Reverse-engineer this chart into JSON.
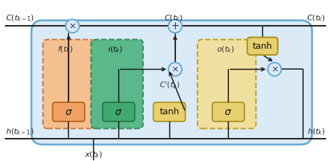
{
  "fig_width": 4.74,
  "fig_height": 2.31,
  "dpi": 100,
  "bg_outer": "#ffffff",
  "bg_inner": "#daeaf7",
  "cell_border_color": "#6aaad4",
  "gate_f_fill": "#f5c090",
  "gate_f_border": "#d07840",
  "gate_i_fill": "#5ab88a",
  "gate_i_border": "#3a8860",
  "gate_o_fill": "#f0e0a0",
  "gate_o_border": "#c8a020",
  "sigma_f_fill": "#f0a060",
  "sigma_f_border": "#b06020",
  "sigma_i_fill": "#40a870",
  "sigma_i_border": "#207840",
  "sigma_o_fill": "#e8d070",
  "sigma_o_border": "#a89020",
  "tanh_c_fill": "#e8d070",
  "tanh_c_border": "#a89020",
  "tanh_top_fill": "#e8d070",
  "tanh_top_border": "#a89020",
  "circle_fill": "#daeaf7",
  "circle_border": "#6aaad4",
  "line_color": "#222222",
  "text_color": "#222222"
}
